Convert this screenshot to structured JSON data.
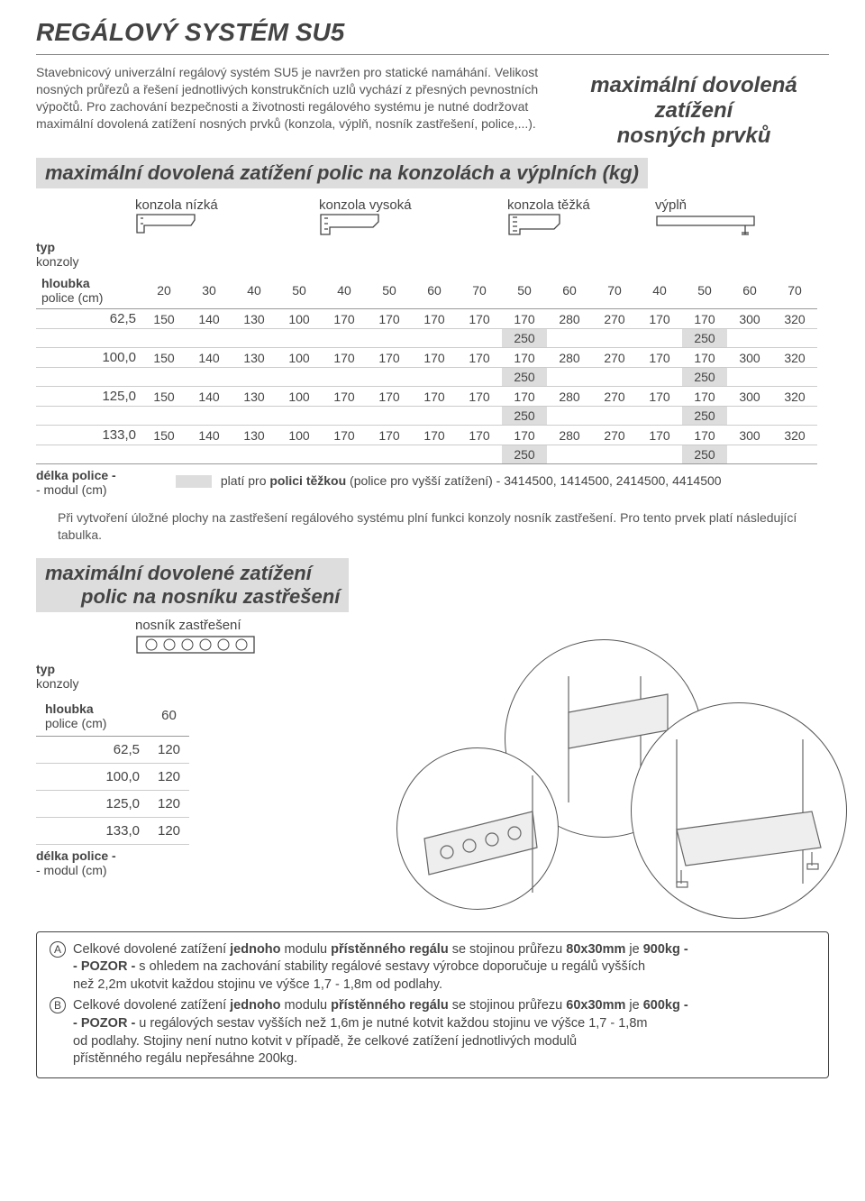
{
  "title": "REGÁLOVÝ SYSTÉM SU5",
  "intro": "Stavebnicový univerzální regálový systém SU5 je navržen pro statické namáhání. Velikost nosných průřezů a řešení jednotlivých konstrukčních uzlů vychází z přesných pevnostních výpočtů. Pro zachování bezpečnosti a životnosti regálového systému je nutné dodržovat maximální dovolená zatížení nosných prvků (konzola, výplň, nosník zastřešení, police,...).",
  "right_heading": {
    "l1": "maximální dovolená zatížení",
    "l2": "nosných prvků"
  },
  "sec1_heading": "maximální dovolená zatížení polic na konzolách a výplních (kg)",
  "col_groups": {
    "nizka": "konzola nízká",
    "vysoka": "konzola vysoká",
    "tezka": "konzola těžká",
    "vypln": "výplň"
  },
  "typ_konzoly_label": {
    "l1": "typ",
    "l2": "konzoly"
  },
  "hloubka_label": {
    "l1": "hloubka",
    "l2": "police (cm)"
  },
  "delka_label": {
    "l1": "délka police -",
    "l2": "- modul (cm)"
  },
  "depth_headers": [
    "20",
    "30",
    "40",
    "50",
    "40",
    "50",
    "60",
    "70",
    "50",
    "60",
    "70",
    "40",
    "50",
    "60",
    "70"
  ],
  "rows": [
    {
      "len": "62,5",
      "vals": [
        "150",
        "140",
        "130",
        "100",
        "170",
        "170",
        "170",
        "170",
        "170",
        "280",
        "270",
        "170",
        "170",
        "300",
        "320"
      ],
      "hl": {
        "8": "250",
        "12": "250"
      }
    },
    {
      "len": "100,0",
      "vals": [
        "150",
        "140",
        "130",
        "100",
        "170",
        "170",
        "170",
        "170",
        "170",
        "280",
        "270",
        "170",
        "170",
        "300",
        "320"
      ],
      "hl": {
        "8": "250",
        "12": "250"
      }
    },
    {
      "len": "125,0",
      "vals": [
        "150",
        "140",
        "130",
        "100",
        "170",
        "170",
        "170",
        "170",
        "170",
        "280",
        "270",
        "170",
        "170",
        "300",
        "320"
      ],
      "hl": {
        "8": "250",
        "12": "250"
      }
    },
    {
      "len": "133,0",
      "vals": [
        "150",
        "140",
        "130",
        "100",
        "170",
        "170",
        "170",
        "170",
        "170",
        "280",
        "270",
        "170",
        "170",
        "300",
        "320"
      ],
      "hl": {
        "8": "250",
        "12": "250"
      }
    }
  ],
  "tezka_note_prefix": "platí pro ",
  "tezka_note_bold": "polici těžkou",
  "tezka_note_rest": " (police pro vyšší zatížení) - 3414500, 1414500, 2414500, 4414500",
  "between_text": "Při vytvoření úložné plochy na zastřešení regálového systému plní funkci konzoly nosník zastřešení. Pro tento prvek platí následující tabulka.",
  "sec2_heading": {
    "l1": "maximální dovolené zatížení",
    "l2": "polic na nosníku zastřešení"
  },
  "nosnik_label": "nosník zastřešení",
  "sec2_depth": "60",
  "sec2_rows": [
    {
      "len": "62,5",
      "val": "120"
    },
    {
      "len": "100,0",
      "val": "120"
    },
    {
      "len": "125,0",
      "val": "120"
    },
    {
      "len": "133,0",
      "val": "120"
    }
  ],
  "bottom": {
    "A_prefix": "Celkové dovolené zatížení ",
    "A_b1": "jednoho",
    "A_mid1": " modulu ",
    "A_b2": "přístěnného regálu",
    "A_mid2": " se stojinou průřezu ",
    "A_b3": "80x30mm",
    "A_mid3": " je ",
    "A_b4": "900kg -",
    "A_l2a": "- POZOR -",
    "A_l2b": " s ohledem na zachování stability regálové sestavy výrobce doporučuje u regálů vyšších",
    "A_l3": "než 2,2m ukotvit každou stojinu ve výšce 1,7 - 1,8m od podlahy.",
    "B_prefix": "Celkové dovolené zatížení ",
    "B_b1": "jednoho",
    "B_mid1": " modulu ",
    "B_b2": "přístěnného regálu",
    "B_mid2": " se stojinou průřezu ",
    "B_b3": "60x30mm",
    "B_mid3": " je ",
    "B_b4": "600kg -",
    "B_l2a": "- POZOR -",
    "B_l2b": " u regálových sestav vyšších než 1,6m je nutné kotvit každou stojinu ve výšce 1,7 - 1,8m",
    "B_l3": "od podlahy. Stojiny není nutno kotvit v případě, že celkové zatížení jednotlivých modulů",
    "B_l4": "přístěnného regálu nepřesáhne 200kg."
  }
}
